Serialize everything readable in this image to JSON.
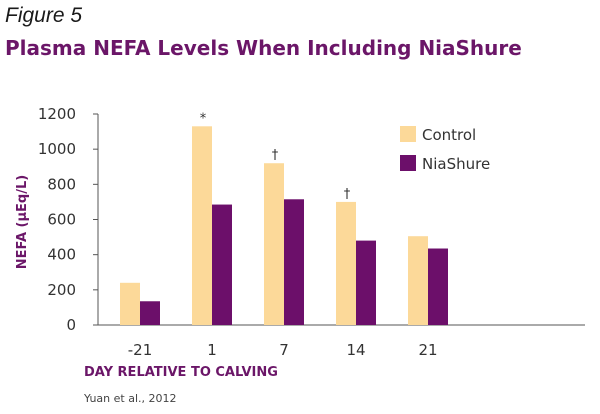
{
  "figure_label": "Figure 5",
  "source": "Yuan et al., 2012",
  "colors": {
    "title": "#6b1668",
    "control": "#fcd999",
    "niashure": "#6c0f6a",
    "axis": "#555555"
  },
  "chart_data": {
    "type": "bar",
    "title": "Plasma NEFA Levels When Including NiaShure",
    "xlabel": "DAY RELATIVE TO CALVING",
    "ylabel": "NEFA (µEq/L)",
    "categories": [
      "-21",
      "1",
      "7",
      "14",
      "21"
    ],
    "series": [
      {
        "name": "Control",
        "color": "#fcd999",
        "values": [
          240,
          1130,
          920,
          700,
          505
        ]
      },
      {
        "name": "NiaShure",
        "color": "#6c0f6a",
        "values": [
          135,
          685,
          715,
          480,
          435
        ]
      }
    ],
    "annotations": [
      "",
      "*",
      "†",
      "†",
      ""
    ],
    "ylim": [
      0,
      1200
    ],
    "yticks": [
      0,
      200,
      400,
      600,
      800,
      1000,
      1200
    ],
    "grid": false,
    "legend_position": "top-right"
  }
}
